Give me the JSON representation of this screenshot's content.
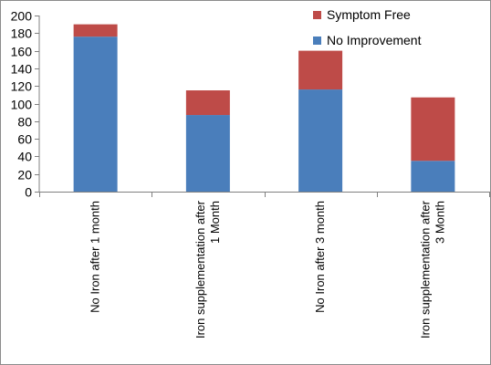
{
  "chart_data": {
    "type": "bar",
    "stacked": true,
    "categories": [
      [
        "No Iron  after 1 month"
      ],
      [
        "Iron supplementation after",
        "1 Month"
      ],
      [
        "No Iron after 3 month"
      ],
      [
        "Iron supplementation after",
        "3 Month"
      ]
    ],
    "series": [
      {
        "name": "No Improvement",
        "color": "#4a7ebb",
        "values": [
          176,
          87,
          116,
          35
        ]
      },
      {
        "name": "Symptom Free",
        "color": "#be4b48",
        "values": [
          14,
          28,
          44,
          72
        ]
      }
    ],
    "ylim": [
      0,
      200
    ],
    "yticks": [
      0,
      20,
      40,
      60,
      80,
      100,
      120,
      140,
      160,
      180,
      200
    ],
    "grid": false,
    "legend_position": "top-right",
    "legend_order": [
      "Symptom Free",
      "No Improvement"
    ]
  }
}
